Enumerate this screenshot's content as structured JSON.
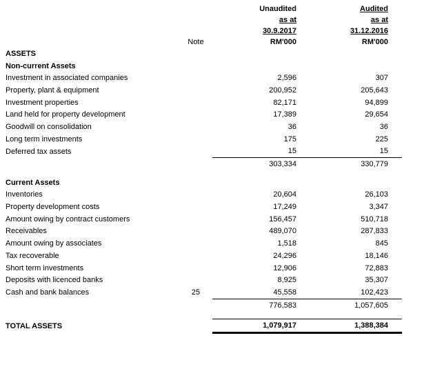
{
  "page": {
    "background": "#ffffff",
    "text_color": "#000000",
    "rule_color": "#000000"
  },
  "header": {
    "note_label": "Note",
    "col_unaudited": {
      "status": "Unaudited",
      "as_at": "as at",
      "date": "30.9.2017",
      "unit": "RM'000"
    },
    "col_audited": {
      "status": "Audited",
      "as_at": "as at",
      "date": "31.12.2016",
      "unit": "RM'000"
    }
  },
  "statement": {
    "assets_title": "ASSETS",
    "noncurrent": {
      "heading": "Non-current Assets",
      "items": [
        {
          "label": "Investment in associated companies",
          "note": "",
          "v1": "2,596",
          "v2": "307"
        },
        {
          "label": "Property, plant & equipment",
          "note": "",
          "v1": "200,952",
          "v2": "205,643"
        },
        {
          "label": "Investment properties",
          "note": "",
          "v1": "82,171",
          "v2": "94,899"
        },
        {
          "label": "Land held for property development",
          "note": "",
          "v1": "17,389",
          "v2": "29,654"
        },
        {
          "label": "Goodwill on consolidation",
          "note": "",
          "v1": "36",
          "v2": "36"
        },
        {
          "label": "Long term investments",
          "note": "",
          "v1": "175",
          "v2": "225"
        },
        {
          "label": "Deferred tax assets",
          "note": "",
          "v1": "15",
          "v2": "15"
        }
      ],
      "subtotal": {
        "v1": "303,334",
        "v2": "330,779"
      }
    },
    "current": {
      "heading": "Current Assets",
      "items": [
        {
          "label": "Inventories",
          "note": "",
          "v1": "20,604",
          "v2": "26,103"
        },
        {
          "label": "Property development costs",
          "note": "",
          "v1": "17,249",
          "v2": "3,347"
        },
        {
          "label": "Amount owing by contract customers",
          "note": "",
          "v1": "156,457",
          "v2": "510,718"
        },
        {
          "label": "Receivables",
          "note": "",
          "v1": "489,070",
          "v2": "287,833"
        },
        {
          "label": "Amount owing by associates",
          "note": "",
          "v1": "1,518",
          "v2": "845"
        },
        {
          "label": "Tax recoverable",
          "note": "",
          "v1": "24,296",
          "v2": "18,146"
        },
        {
          "label": "Short term investments",
          "note": "",
          "v1": "12,906",
          "v2": "72,883"
        },
        {
          "label": "Deposits with licenced banks",
          "note": "",
          "v1": "8,925",
          "v2": "35,307"
        },
        {
          "label": "Cash and bank balances",
          "note": "25",
          "v1": "45,558",
          "v2": "102,423"
        }
      ],
      "subtotal": {
        "v1": "776,583",
        "v2": "1,057,605"
      }
    },
    "total": {
      "label": "TOTAL ASSETS",
      "v1": "1,079,917",
      "v2": "1,388,384"
    }
  }
}
